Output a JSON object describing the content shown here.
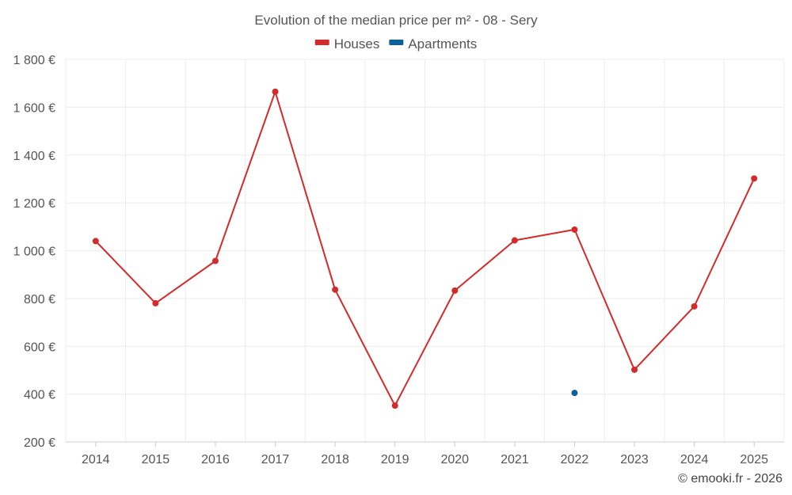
{
  "chart_data": {
    "type": "line",
    "title": "Evolution of the median price per m² - 08 - Sery",
    "categories": [
      "2014",
      "2015",
      "2016",
      "2017",
      "2018",
      "2019",
      "2020",
      "2021",
      "2022",
      "2023",
      "2024",
      "2025"
    ],
    "series": [
      {
        "name": "Houses",
        "color": "#d32a2a",
        "values": [
          1040,
          780,
          957,
          1665,
          837,
          352,
          833,
          1043,
          1088,
          502,
          767,
          1302
        ]
      },
      {
        "name": "Apartments",
        "color": "#0a6199",
        "values": [
          null,
          null,
          null,
          null,
          null,
          null,
          null,
          null,
          405,
          null,
          null,
          null
        ]
      }
    ],
    "ylim": [
      200,
      1800
    ],
    "yticks": [
      200,
      400,
      600,
      800,
      1000,
      1200,
      1400,
      1600,
      1800
    ],
    "ytick_labels": [
      "200 €",
      "400 €",
      "600 €",
      "800 €",
      "1 000 €",
      "1 200 €",
      "1 400 €",
      "1 600 €",
      "1 800 €"
    ],
    "xlabel": "",
    "ylabel": "",
    "legend_position": "top-center",
    "grid": true
  },
  "credit": "© emooki.fr - 2026"
}
